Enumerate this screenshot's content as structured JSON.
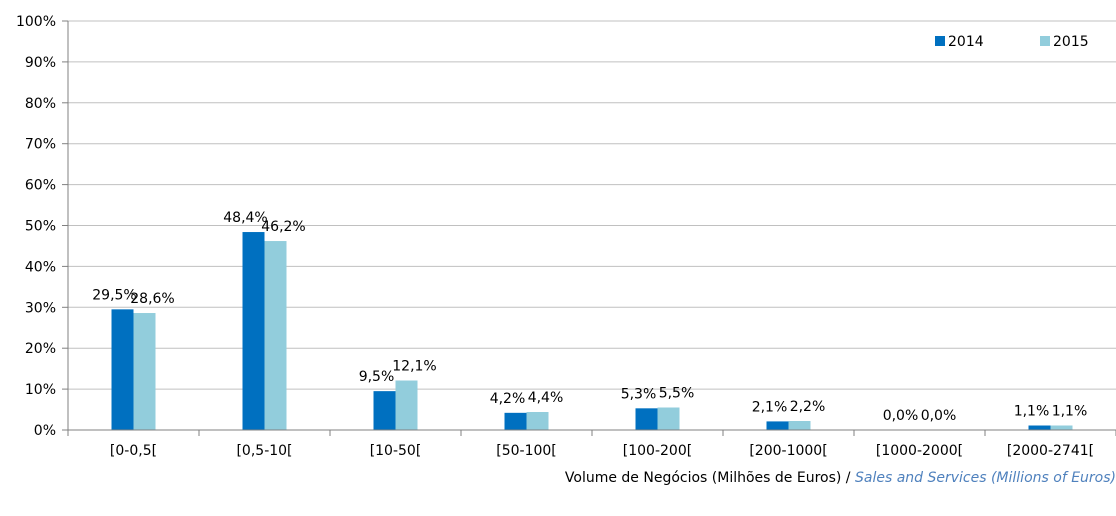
{
  "chart_data": {
    "type": "bar",
    "categories": [
      "[0-0,5[",
      "[0,5-10[",
      "[10-50[",
      "[50-100[",
      "[100-200[",
      "[200-1000[",
      "[1000-2000[",
      "[2000-2741["
    ],
    "series": [
      {
        "name": "2014",
        "values": [
          29.5,
          48.4,
          9.5,
          4.2,
          5.3,
          2.1,
          0.0,
          1.1
        ],
        "labels": [
          "29,5%",
          "48,4%",
          "9,5%",
          "4,2%",
          "5,3%",
          "2,1%",
          "0,0%",
          "1,1%"
        ],
        "color": "#0070c0"
      },
      {
        "name": "2015",
        "values": [
          28.6,
          46.2,
          12.1,
          4.4,
          5.5,
          2.2,
          0.0,
          1.1
        ],
        "labels": [
          "28,6%",
          "46,2%",
          "12,1%",
          "4,4%",
          "5,5%",
          "2,2%",
          "0,0%",
          "1,1%"
        ],
        "color": "#92cddc"
      }
    ],
    "yticks": [
      "0%",
      "10%",
      "20%",
      "30%",
      "40%",
      "50%",
      "60%",
      "70%",
      "80%",
      "90%",
      "100%"
    ],
    "ylim": [
      0,
      100
    ],
    "grid": true,
    "legend": "top-right",
    "xlabel_pt": "Volume de Negócios (Milhões de Euros) /",
    "xlabel_en": "Sales and Services (Millions of Euros)"
  }
}
